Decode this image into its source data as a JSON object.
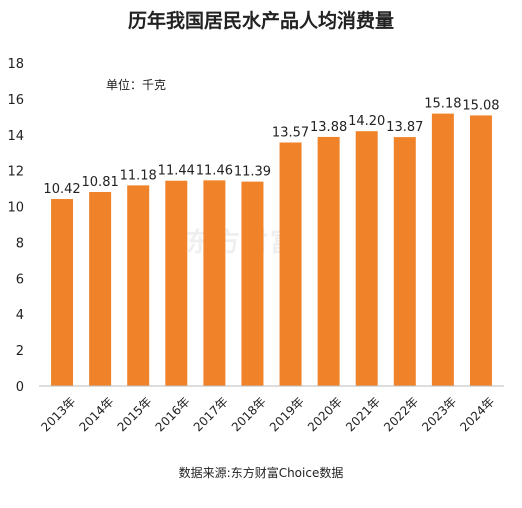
{
  "chart_data": {
    "type": "bar",
    "title": "历年我国居民水产品人均消费量",
    "unit_label": "单位：千克",
    "categories": [
      "2013年",
      "2014年",
      "2015年",
      "2016年",
      "2017年",
      "2018年",
      "2019年",
      "2020年",
      "2021年",
      "2022年",
      "2023年",
      "2024年"
    ],
    "values": [
      10.42,
      10.81,
      11.18,
      11.44,
      11.46,
      11.39,
      13.57,
      13.88,
      14.2,
      13.87,
      15.18,
      15.08
    ],
    "value_labels": [
      "10.42",
      "10.81",
      "11.18",
      "11.44",
      "11.46",
      "11.39",
      "13.57",
      "13.88",
      "14.20",
      "13.87",
      "15.18",
      "15.08"
    ],
    "ylim": [
      0,
      18
    ],
    "yticks": [
      "0",
      "2",
      "4",
      "6",
      "8",
      "10",
      "12",
      "14",
      "16",
      "18"
    ],
    "bar_color": "#f0832a",
    "grid": false,
    "source": "数据来源:东方财富Choice数据"
  },
  "watermark": "东方财富"
}
